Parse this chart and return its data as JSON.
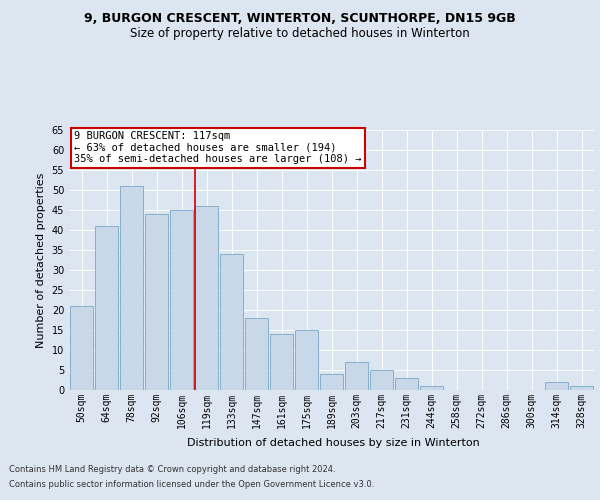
{
  "title1": "9, BURGON CRESCENT, WINTERTON, SCUNTHORPE, DN15 9GB",
  "title2": "Size of property relative to detached houses in Winterton",
  "xlabel": "Distribution of detached houses by size in Winterton",
  "ylabel": "Number of detached properties",
  "categories": [
    "50sqm",
    "64sqm",
    "78sqm",
    "92sqm",
    "106sqm",
    "119sqm",
    "133sqm",
    "147sqm",
    "161sqm",
    "175sqm",
    "189sqm",
    "203sqm",
    "217sqm",
    "231sqm",
    "244sqm",
    "258sqm",
    "272sqm",
    "286sqm",
    "300sqm",
    "314sqm",
    "328sqm"
  ],
  "values": [
    21,
    41,
    51,
    44,
    45,
    46,
    34,
    18,
    14,
    15,
    4,
    7,
    5,
    3,
    1,
    0,
    0,
    0,
    0,
    2,
    1
  ],
  "bar_color": "#c8d8e8",
  "bar_edge_color": "#7aa8c8",
  "highlight_index": 5,
  "highlight_line_color": "#cc0000",
  "annotation_text": "9 BURGON CRESCENT: 117sqm\n← 63% of detached houses are smaller (194)\n35% of semi-detached houses are larger (108) →",
  "annotation_box_color": "#ffffff",
  "annotation_box_edge": "#cc0000",
  "ylim": [
    0,
    65
  ],
  "yticks": [
    0,
    5,
    10,
    15,
    20,
    25,
    30,
    35,
    40,
    45,
    50,
    55,
    60,
    65
  ],
  "footer1": "Contains HM Land Registry data © Crown copyright and database right 2024.",
  "footer2": "Contains public sector information licensed under the Open Government Licence v3.0.",
  "background_color": "#dce6f0",
  "plot_bg_color": "#dce6f0",
  "title_fontsize": 9,
  "subtitle_fontsize": 8.5,
  "tick_fontsize": 7,
  "label_fontsize": 8,
  "footer_fontsize": 6
}
